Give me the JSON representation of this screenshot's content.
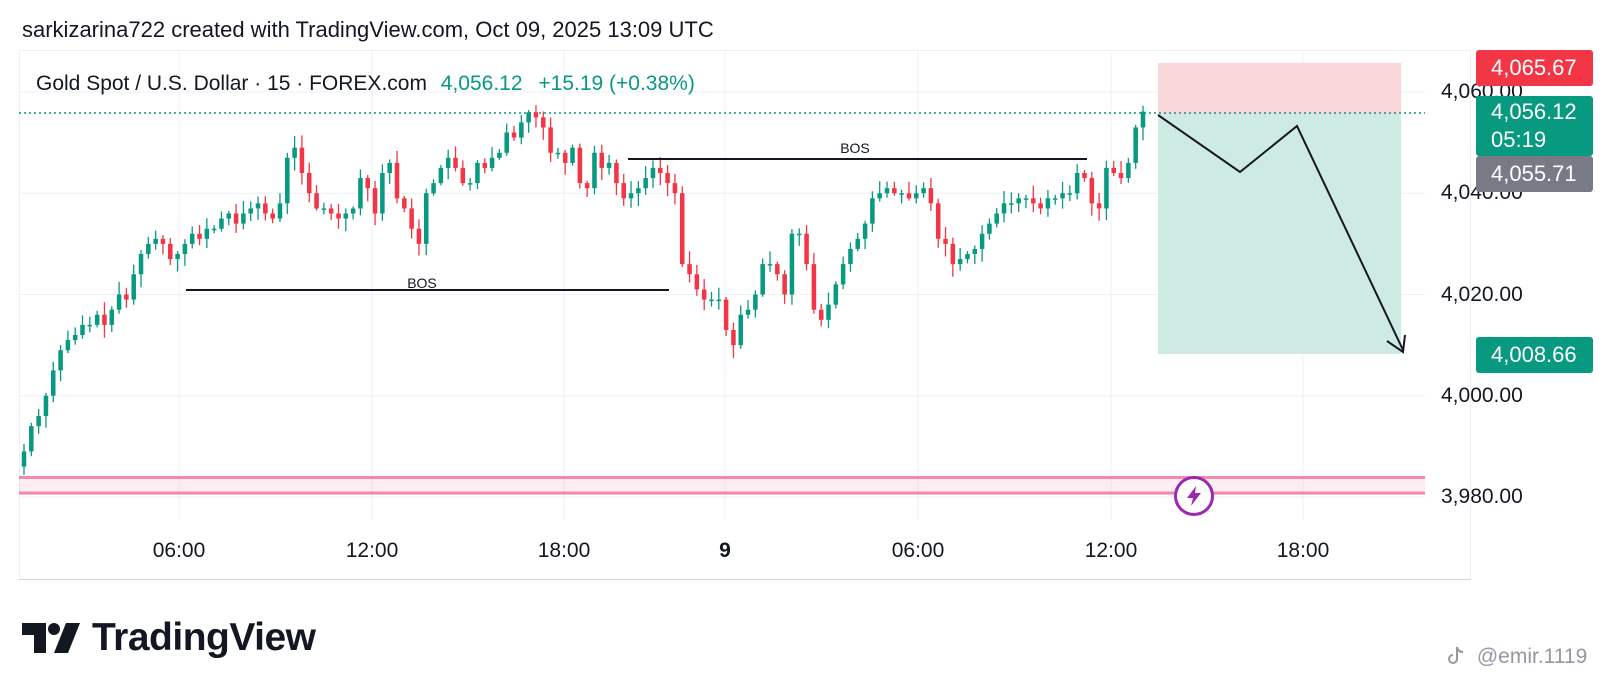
{
  "header": {
    "title": "sarkizarina722 created with TradingView.com, Oct 09, 2025 13:09 UTC"
  },
  "legend": {
    "symbol": "Gold Spot / U.S. Dollar · 15 · FOREX.com",
    "last": "4,056.12",
    "change": "+15.19 (+0.38%)"
  },
  "price_axis": {
    "ticks": [
      "4,060.00",
      "4,040.00",
      "4,020.00",
      "4,000.00",
      "3,980.00"
    ],
    "badges": {
      "stop": "4,065.67",
      "last": "4,056.12",
      "countdown": "05:19",
      "prev": "4,055.71",
      "target": "4,008.66"
    }
  },
  "time_axis": {
    "ticks": [
      "06:00",
      "12:00",
      "18:00",
      "9",
      "06:00",
      "12:00",
      "18:00"
    ]
  },
  "annotations": {
    "bos_upper": "BOS",
    "bos_lower": "BOS"
  },
  "branding": {
    "logo_text": "TradingView",
    "watermark": "@emir.1119"
  },
  "colors": {
    "up": "#089981",
    "down": "#f23645",
    "stop_zone": "#f9d6da",
    "target_zone": "#cdeae3",
    "support_band": "#f06292",
    "bolt": "#9c27b0",
    "prev_badge": "#787b86"
  },
  "chart_data": {
    "type": "candlestick",
    "symbol": "Gold Spot / U.S. Dollar",
    "interval": "15",
    "ylim": [
      3976,
      4066
    ],
    "y_ticks": [
      3980,
      4000,
      4020,
      4040,
      4060
    ],
    "x_ticks": [
      "06:00",
      "12:00",
      "18:00",
      "9",
      "06:00",
      "12:00",
      "18:00"
    ],
    "grid": true,
    "last_price": 4056.12,
    "closes": [
      3989,
      3994,
      3996,
      4000,
      4005,
      4009,
      4011,
      4012,
      4014,
      4014,
      4016,
      4014,
      4017,
      4020,
      4019,
      4024,
      4028,
      4030,
      4031,
      4030,
      4027,
      4028,
      4030,
      4032,
      4031,
      4033,
      4033,
      4035,
      4036,
      4034,
      4036,
      4037,
      4038,
      4036,
      4035,
      4038,
      4047,
      4049,
      4044,
      4040,
      4037,
      4037,
      4036,
      4035,
      4036,
      4037,
      4043,
      4041,
      4036,
      4044,
      4046,
      4039,
      4037,
      4033,
      4030,
      4040,
      4042,
      4045,
      4047,
      4045,
      4042,
      4042,
      4046,
      4045,
      4047,
      4048,
      4052,
      4051,
      4054,
      4056,
      4055,
      4053,
      4048,
      4048,
      4046,
      4049,
      4042,
      4041,
      4048,
      4045,
      4046,
      4042,
      4039,
      4040,
      4041,
      4043,
      4045,
      4044,
      4042,
      4040,
      4026,
      4024,
      4021,
      4019,
      4019,
      4019,
      4013,
      4010,
      4016,
      4017,
      4020,
      4026,
      4026,
      4024,
      4020,
      4032,
      4032,
      4026,
      4017,
      4015,
      4018,
      4022,
      4026,
      4029,
      4031,
      4034,
      4039,
      4040,
      4041,
      4040,
      4040,
      4039,
      4040,
      4041,
      4038,
      4031,
      4030,
      4026,
      4027,
      4028,
      4029,
      4032,
      4034,
      4036,
      4038,
      4038,
      4039,
      4039,
      4038,
      4037,
      4039,
      4039,
      4040,
      4040,
      4044,
      4043,
      4038,
      4037,
      4045,
      4044,
      4043,
      4046,
      4053,
      4056.12
    ]
  }
}
